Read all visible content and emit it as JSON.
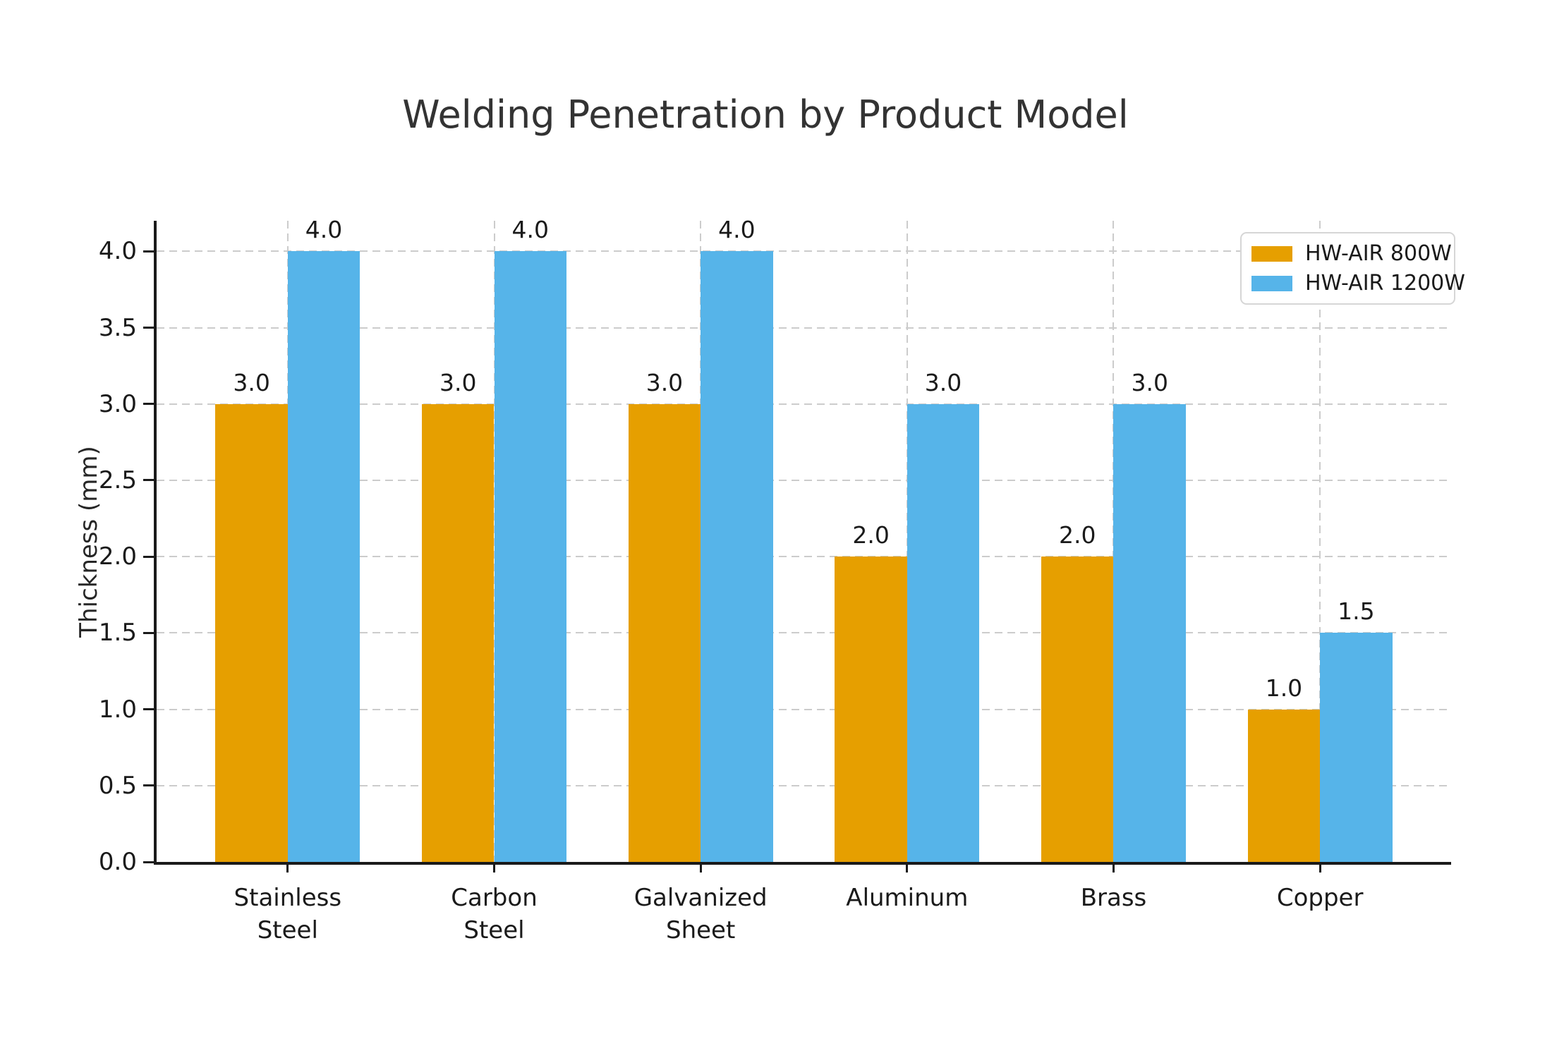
{
  "chart_data": {
    "type": "bar",
    "title": "Welding Penetration by Product Model",
    "ylabel": "Thickness (mm)",
    "xlabel": "",
    "categories": [
      "Stainless\nSteel",
      "Carbon\nSteel",
      "Galvanized\nSheet",
      "Aluminum",
      "Brass",
      "Copper"
    ],
    "series": [
      {
        "name": "HW-AIR 800W",
        "color": "#E69F00",
        "values": [
          3.0,
          3.0,
          3.0,
          2.0,
          2.0,
          1.0
        ]
      },
      {
        "name": "HW-AIR 1200W",
        "color": "#56B4E9",
        "values": [
          4.0,
          4.0,
          4.0,
          3.0,
          3.0,
          1.5
        ]
      }
    ],
    "bar_value_labels": [
      [
        "3.0",
        "3.0",
        "3.0",
        "2.0",
        "2.0",
        "1.0"
      ],
      [
        "4.0",
        "4.0",
        "4.0",
        "3.0",
        "3.0",
        "1.5"
      ]
    ],
    "yticks": [
      "0.0",
      "0.5",
      "1.0",
      "1.5",
      "2.0",
      "2.5",
      "3.0",
      "3.5",
      "4.0"
    ],
    "ylim": [
      0,
      4.2
    ],
    "x_range": [
      -0.635,
      5.635
    ],
    "bar_width": 0.35,
    "grid": true,
    "grid_style": "dashed",
    "legend_position": "upper right",
    "colors": {
      "grid": "#cccccc",
      "spine": "#1a1a1a",
      "text": "#262626"
    }
  }
}
